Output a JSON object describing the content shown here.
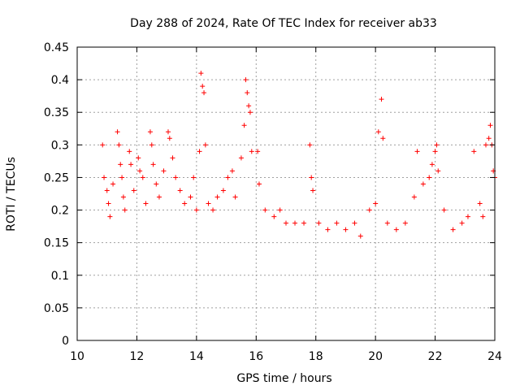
{
  "chart_data": {
    "type": "scatter",
    "title": "Day 288 of 2024, Rate Of TEC Index for receiver ab33",
    "xlabel": "GPS time / hours",
    "ylabel": "ROTI / TECUs",
    "xlim": [
      10,
      24
    ],
    "ylim": [
      0,
      0.45
    ],
    "x_ticks": [
      "10",
      "12",
      "14",
      "16",
      "18",
      "20",
      "22",
      "24"
    ],
    "y_ticks": [
      "0",
      "0.05",
      "0.1",
      "0.15",
      "0.2",
      "0.25",
      "0.3",
      "0.35",
      "0.4",
      "0.45"
    ],
    "grid": true,
    "legend": "none",
    "marker": "plus",
    "series_color": "#ff0000",
    "series": [
      {
        "points": [
          [
            10.85,
            0.3
          ],
          [
            10.9,
            0.25
          ],
          [
            11.0,
            0.23
          ],
          [
            11.05,
            0.21
          ],
          [
            11.1,
            0.19
          ],
          [
            11.2,
            0.24
          ],
          [
            11.35,
            0.32
          ],
          [
            11.4,
            0.3
          ],
          [
            11.45,
            0.27
          ],
          [
            11.5,
            0.25
          ],
          [
            11.55,
            0.22
          ],
          [
            11.6,
            0.2
          ],
          [
            11.75,
            0.29
          ],
          [
            11.8,
            0.27
          ],
          [
            11.9,
            0.23
          ],
          [
            12.05,
            0.28
          ],
          [
            12.1,
            0.26
          ],
          [
            12.2,
            0.25
          ],
          [
            12.3,
            0.21
          ],
          [
            12.45,
            0.32
          ],
          [
            12.5,
            0.3
          ],
          [
            12.55,
            0.27
          ],
          [
            12.65,
            0.24
          ],
          [
            12.75,
            0.22
          ],
          [
            12.9,
            0.26
          ],
          [
            13.05,
            0.32
          ],
          [
            13.1,
            0.31
          ],
          [
            13.2,
            0.28
          ],
          [
            13.3,
            0.25
          ],
          [
            13.45,
            0.23
          ],
          [
            13.6,
            0.21
          ],
          [
            13.8,
            0.22
          ],
          [
            13.9,
            0.25
          ],
          [
            14.0,
            0.2
          ],
          [
            14.1,
            0.29
          ],
          [
            14.15,
            0.41
          ],
          [
            14.2,
            0.39
          ],
          [
            14.25,
            0.38
          ],
          [
            14.3,
            0.3
          ],
          [
            14.4,
            0.21
          ],
          [
            14.55,
            0.2
          ],
          [
            14.7,
            0.22
          ],
          [
            14.9,
            0.23
          ],
          [
            15.05,
            0.25
          ],
          [
            15.2,
            0.26
          ],
          [
            15.3,
            0.22
          ],
          [
            15.5,
            0.28
          ],
          [
            15.6,
            0.33
          ],
          [
            15.65,
            0.4
          ],
          [
            15.7,
            0.38
          ],
          [
            15.75,
            0.36
          ],
          [
            15.8,
            0.35
          ],
          [
            15.85,
            0.29
          ],
          [
            16.05,
            0.29
          ],
          [
            16.1,
            0.24
          ],
          [
            16.3,
            0.2
          ],
          [
            16.6,
            0.19
          ],
          [
            16.8,
            0.2
          ],
          [
            17.0,
            0.18
          ],
          [
            17.3,
            0.18
          ],
          [
            17.6,
            0.18
          ],
          [
            17.8,
            0.3
          ],
          [
            17.85,
            0.25
          ],
          [
            17.9,
            0.23
          ],
          [
            18.1,
            0.18
          ],
          [
            18.4,
            0.17
          ],
          [
            18.7,
            0.18
          ],
          [
            19.0,
            0.17
          ],
          [
            19.3,
            0.18
          ],
          [
            19.5,
            0.16
          ],
          [
            19.8,
            0.2
          ],
          [
            20.0,
            0.21
          ],
          [
            20.1,
            0.32
          ],
          [
            20.2,
            0.37
          ],
          [
            20.25,
            0.31
          ],
          [
            20.4,
            0.18
          ],
          [
            20.7,
            0.17
          ],
          [
            21.0,
            0.18
          ],
          [
            21.3,
            0.22
          ],
          [
            21.4,
            0.29
          ],
          [
            21.6,
            0.24
          ],
          [
            21.8,
            0.25
          ],
          [
            21.9,
            0.27
          ],
          [
            22.0,
            0.29
          ],
          [
            22.05,
            0.3
          ],
          [
            22.1,
            0.26
          ],
          [
            22.3,
            0.2
          ],
          [
            22.6,
            0.17
          ],
          [
            22.9,
            0.18
          ],
          [
            23.1,
            0.19
          ],
          [
            23.3,
            0.29
          ],
          [
            23.5,
            0.21
          ],
          [
            23.6,
            0.19
          ],
          [
            23.7,
            0.3
          ],
          [
            23.8,
            0.31
          ],
          [
            23.85,
            0.33
          ],
          [
            23.9,
            0.3
          ],
          [
            23.95,
            0.26
          ],
          [
            24.0,
            0.25
          ]
        ]
      }
    ]
  }
}
